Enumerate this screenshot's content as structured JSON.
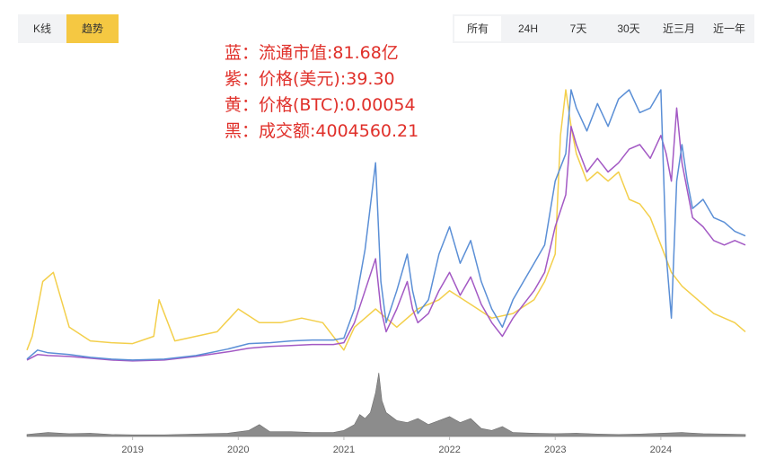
{
  "mode_tabs": [
    {
      "label": "K线",
      "active": false
    },
    {
      "label": "趋势",
      "active": true
    }
  ],
  "range_tabs": [
    {
      "label": "所有",
      "active": true
    },
    {
      "label": "24H",
      "active": false
    },
    {
      "label": "7天",
      "active": false
    },
    {
      "label": "30天",
      "active": false
    },
    {
      "label": "近三月",
      "active": false
    },
    {
      "label": "近一年",
      "active": false
    }
  ],
  "legend": [
    {
      "text": "蓝：流通市值:81.68亿",
      "color": "#5b8fd6"
    },
    {
      "text": "紫：价格(美元):39.30",
      "color": "#a359c4"
    },
    {
      "text": "黄：价格(BTC):0.00054",
      "color": "#f3cf4b"
    },
    {
      "text": "黑：成交额:4004560.21",
      "color": "#333333"
    }
  ],
  "colors": {
    "blue": "#5b8fd6",
    "purple": "#a359c4",
    "yellow": "#f3cf4b",
    "volume": "#8c8c8c",
    "axis": "#555555",
    "legend_text": "#e0302a"
  },
  "chart_data": {
    "type": "line",
    "x_axis_ticks": [
      "2019",
      "2020",
      "2021",
      "2022",
      "2023",
      "2024"
    ],
    "x_range": [
      2018.0,
      2024.8
    ],
    "grid": false,
    "legend_placement": "top-left",
    "series": [
      {
        "name": "蓝：流通市值",
        "color": "#5b8fd6",
        "x": [
          2018.0,
          2018.1,
          2018.2,
          2018.4,
          2018.6,
          2018.8,
          2019.0,
          2019.3,
          2019.6,
          2019.9,
          2020.1,
          2020.3,
          2020.5,
          2020.7,
          2020.9,
          2021.0,
          2021.1,
          2021.2,
          2021.3,
          2021.35,
          2021.4,
          2021.5,
          2021.6,
          2021.65,
          2021.7,
          2021.8,
          2021.9,
          2022.0,
          2022.1,
          2022.2,
          2022.3,
          2022.4,
          2022.5,
          2022.6,
          2022.7,
          2022.8,
          2022.9,
          2023.0,
          2023.1,
          2023.15,
          2023.2,
          2023.3,
          2023.4,
          2023.5,
          2023.6,
          2023.7,
          2023.8,
          2023.9,
          2024.0,
          2024.05,
          2024.1,
          2024.15,
          2024.2,
          2024.25,
          2024.3,
          2024.4,
          2024.5,
          2024.6,
          2024.7,
          2024.8
        ],
        "values": [
          0.5,
          1.5,
          1.2,
          1.0,
          0.7,
          0.5,
          0.4,
          0.5,
          0.9,
          1.6,
          2.2,
          2.3,
          2.5,
          2.6,
          2.6,
          2.8,
          6.0,
          12.5,
          22.0,
          9.0,
          4.5,
          8.0,
          12.0,
          8.0,
          5.5,
          7.0,
          12.0,
          15.0,
          11.0,
          13.5,
          9.0,
          6.0,
          4.0,
          7.0,
          9.0,
          11.0,
          13.0,
          20.0,
          23.0,
          30.0,
          28.0,
          25.5,
          28.5,
          26.0,
          29.0,
          30.0,
          27.5,
          28.0,
          30.0,
          12.0,
          5.0,
          20.0,
          24.0,
          20.0,
          17.0,
          18.0,
          16.0,
          15.5,
          14.5,
          14.0
        ]
      },
      {
        "name": "紫：价格(美元)",
        "color": "#a359c4",
        "x": [
          2018.0,
          2018.1,
          2018.2,
          2018.4,
          2018.6,
          2018.8,
          2019.0,
          2019.3,
          2019.6,
          2019.9,
          2020.1,
          2020.3,
          2020.5,
          2020.7,
          2020.9,
          2021.0,
          2021.1,
          2021.2,
          2021.3,
          2021.35,
          2021.4,
          2021.5,
          2021.6,
          2021.65,
          2021.7,
          2021.8,
          2021.9,
          2022.0,
          2022.1,
          2022.2,
          2022.3,
          2022.4,
          2022.5,
          2022.6,
          2022.7,
          2022.8,
          2022.9,
          2023.0,
          2023.1,
          2023.15,
          2023.2,
          2023.3,
          2023.4,
          2023.5,
          2023.6,
          2023.7,
          2023.8,
          2023.9,
          2024.0,
          2024.05,
          2024.1,
          2024.15,
          2024.2,
          2024.25,
          2024.3,
          2024.4,
          2024.5,
          2024.6,
          2024.7,
          2024.8
        ],
        "values": [
          0.4,
          1.0,
          0.9,
          0.8,
          0.6,
          0.4,
          0.3,
          0.4,
          0.8,
          1.3,
          1.7,
          1.9,
          2.0,
          2.1,
          2.1,
          2.3,
          4.5,
          8.0,
          11.5,
          6.0,
          3.5,
          6.0,
          9.0,
          6.0,
          4.5,
          5.5,
          8.0,
          10.0,
          7.5,
          9.5,
          6.5,
          4.5,
          3.0,
          5.0,
          6.5,
          8.0,
          10.0,
          15.0,
          18.5,
          26.0,
          24.0,
          21.0,
          22.5,
          21.0,
          22.0,
          23.5,
          24.0,
          22.5,
          25.0,
          23.0,
          20.0,
          28.0,
          22.0,
          19.0,
          16.0,
          15.0,
          13.5,
          13.0,
          13.5,
          13.0
        ]
      },
      {
        "name": "黄：价格(BTC)",
        "color": "#f3cf4b",
        "x": [
          2018.0,
          2018.05,
          2018.15,
          2018.25,
          2018.4,
          2018.6,
          2018.8,
          2019.0,
          2019.2,
          2019.25,
          2019.4,
          2019.6,
          2019.8,
          2020.0,
          2020.2,
          2020.4,
          2020.6,
          2020.8,
          2021.0,
          2021.1,
          2021.2,
          2021.3,
          2021.5,
          2021.7,
          2021.9,
          2022.0,
          2022.2,
          2022.4,
          2022.6,
          2022.8,
          2022.9,
          2023.0,
          2023.05,
          2023.1,
          2023.15,
          2023.2,
          2023.3,
          2023.4,
          2023.5,
          2023.6,
          2023.7,
          2023.8,
          2023.9,
          2024.0,
          2024.1,
          2024.2,
          2024.3,
          2024.4,
          2024.5,
          2024.6,
          2024.7,
          2024.8
        ],
        "values": [
          1.5,
          3.0,
          9.0,
          10.0,
          4.0,
          2.5,
          2.3,
          2.2,
          3.0,
          7.0,
          2.5,
          3.0,
          3.5,
          6.0,
          4.5,
          4.5,
          5.0,
          4.5,
          1.5,
          4.0,
          5.0,
          6.0,
          4.0,
          6.0,
          7.0,
          8.0,
          6.5,
          5.0,
          5.5,
          7.0,
          9.0,
          12.0,
          25.0,
          30.0,
          26.0,
          23.0,
          20.0,
          21.0,
          20.0,
          21.0,
          18.0,
          17.5,
          16.0,
          13.0,
          10.0,
          8.5,
          7.5,
          6.5,
          5.5,
          5.0,
          4.5,
          3.5
        ]
      },
      {
        "name": "黑：成交额",
        "color": "#8c8c8c",
        "x": [
          2018.0,
          2018.2,
          2018.4,
          2018.6,
          2018.8,
          2019.0,
          2019.3,
          2019.6,
          2019.9,
          2020.1,
          2020.2,
          2020.3,
          2020.5,
          2020.7,
          2020.9,
          2021.0,
          2021.1,
          2021.15,
          2021.2,
          2021.25,
          2021.3,
          2021.33,
          2021.36,
          2021.4,
          2021.5,
          2021.6,
          2021.7,
          2021.8,
          2021.9,
          2022.0,
          2022.1,
          2022.2,
          2022.3,
          2022.4,
          2022.5,
          2022.6,
          2022.8,
          2023.0,
          2023.2,
          2023.4,
          2023.6,
          2023.8,
          2024.0,
          2024.2,
          2024.4,
          2024.6,
          2024.8
        ],
        "values": [
          0.5,
          1.0,
          0.7,
          0.8,
          0.5,
          0.4,
          0.4,
          0.6,
          0.8,
          1.5,
          3.0,
          1.2,
          1.2,
          1.0,
          1.0,
          1.5,
          3.0,
          5.5,
          4.5,
          6.0,
          11.0,
          16.0,
          9.0,
          6.0,
          4.0,
          3.5,
          4.5,
          3.0,
          4.0,
          5.0,
          3.5,
          4.5,
          2.0,
          1.5,
          2.5,
          1.0,
          0.8,
          0.7,
          0.8,
          0.6,
          0.5,
          0.6,
          0.8,
          1.0,
          0.7,
          0.6,
          0.5
        ]
      }
    ]
  }
}
